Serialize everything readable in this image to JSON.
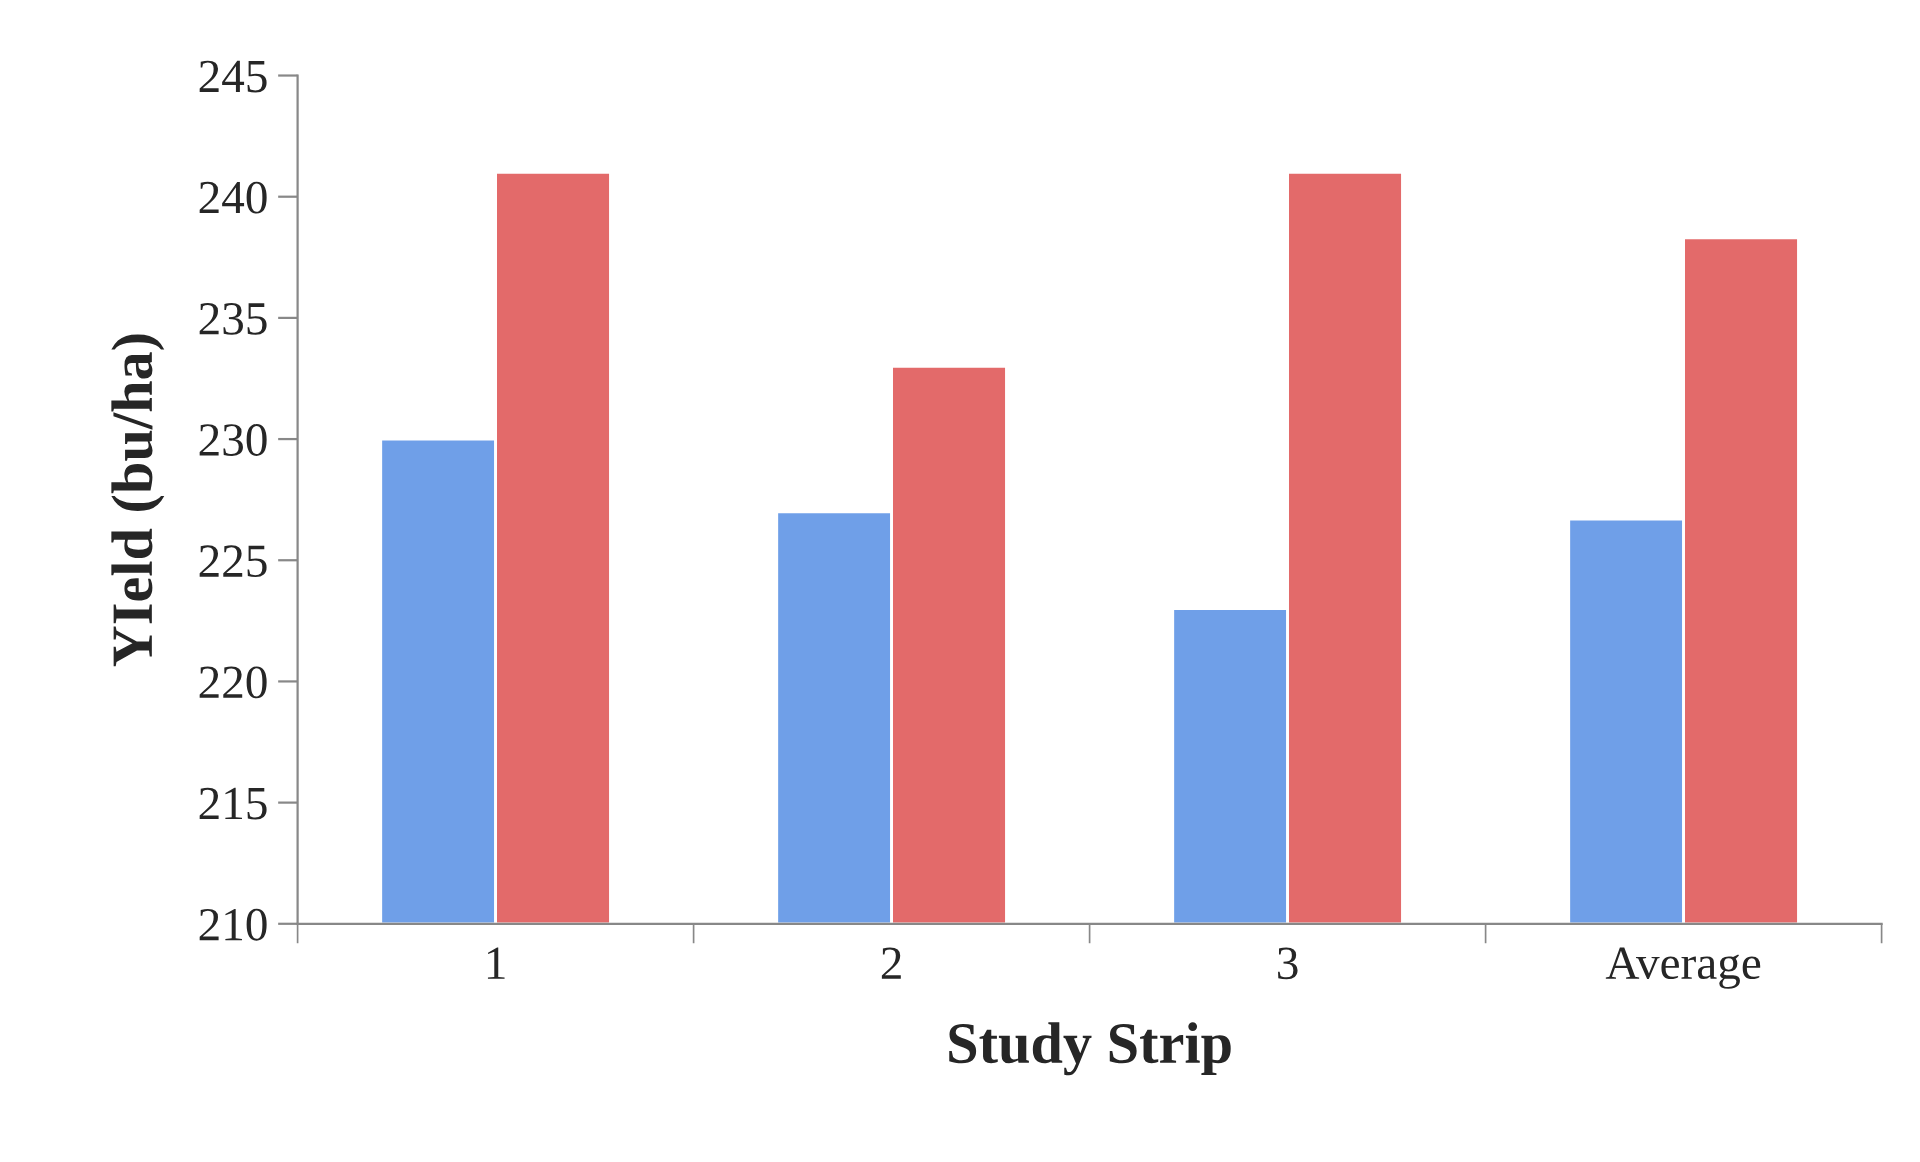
{
  "chart_data": {
    "type": "bar",
    "xlabel": "Study Strip",
    "ylabel": "YIeld (bu/ha)",
    "categories": [
      "1",
      "2",
      "3",
      "Average"
    ],
    "series": [
      {
        "color": "#6f9fe8",
        "values": [
          230,
          227,
          223,
          226.7
        ]
      },
      {
        "color": "#e36a6a",
        "values": [
          241,
          233,
          241,
          238.3
        ]
      }
    ],
    "ylim": [
      210,
      245
    ],
    "yticks": [
      210,
      215,
      220,
      225,
      230,
      235,
      240,
      245
    ],
    "grid": false,
    "legend": false
  }
}
